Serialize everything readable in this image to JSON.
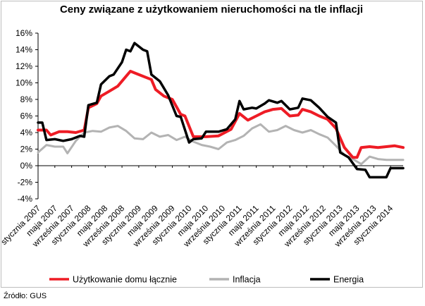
{
  "source": "Źródło: GUS",
  "chart_data": {
    "type": "line",
    "title": "Ceny związane z użytkowaniem nieruchomości na tle inflacji",
    "xlabel": "",
    "ylabel": "",
    "ylim": [
      -4,
      16
    ],
    "y_ticks": [
      -4,
      -2,
      0,
      2,
      4,
      6,
      8,
      10,
      12,
      14,
      16
    ],
    "y_tick_labels": [
      "-4%",
      "-2%",
      "0%",
      "2%",
      "4%",
      "6%",
      "8%",
      "10%",
      "12%",
      "14%",
      "16%"
    ],
    "grid": false,
    "legend_position": "bottom",
    "x_start": "2007-01",
    "x_end": "2014-04",
    "x_tick_labels": [
      {
        "date": "2007-01",
        "label": "stycznia 2007"
      },
      {
        "date": "2007-05",
        "label": "maja 2007"
      },
      {
        "date": "2007-09",
        "label": "września 2007"
      },
      {
        "date": "2008-01",
        "label": "stycznia 2008"
      },
      {
        "date": "2008-05",
        "label": "maja 2008"
      },
      {
        "date": "2008-09",
        "label": "września 2008"
      },
      {
        "date": "2009-01",
        "label": "stycznia 2009"
      },
      {
        "date": "2009-05",
        "label": "maja 2009"
      },
      {
        "date": "2009-09",
        "label": "września 2009"
      },
      {
        "date": "2010-01",
        "label": "stycznia 2010"
      },
      {
        "date": "2010-05",
        "label": "maja 2010"
      },
      {
        "date": "2010-09",
        "label": "września 2010"
      },
      {
        "date": "2011-01",
        "label": "stycznia 2011"
      },
      {
        "date": "2011-05",
        "label": "maja 2011"
      },
      {
        "date": "2011-09",
        "label": "września 2011"
      },
      {
        "date": "2012-01",
        "label": "stycznia 2012"
      },
      {
        "date": "2012-05",
        "label": "maja 2012"
      },
      {
        "date": "2012-09",
        "label": "września 2012"
      },
      {
        "date": "2013-01",
        "label": "stycznia 2013"
      },
      {
        "date": "2013-05",
        "label": "maja 2013"
      },
      {
        "date": "2013-09",
        "label": "września 2013"
      },
      {
        "date": "2014-01",
        "label": "stycznia 2014"
      }
    ],
    "series": [
      {
        "name": "Użytkowanie domu łącznie",
        "color": "#ee1c25",
        "points": [
          [
            "2007-01",
            4.3
          ],
          [
            "2007-03",
            4.3
          ],
          [
            "2007-04",
            3.7
          ],
          [
            "2007-06",
            4.1
          ],
          [
            "2007-08",
            4.1
          ],
          [
            "2007-10",
            4.0
          ],
          [
            "2007-12",
            4.3
          ],
          [
            "2008-01",
            7.0
          ],
          [
            "2008-03",
            7.5
          ],
          [
            "2008-04",
            8.4
          ],
          [
            "2008-06",
            9.0
          ],
          [
            "2008-08",
            9.6
          ],
          [
            "2008-10",
            10.8
          ],
          [
            "2008-11",
            11.4
          ],
          [
            "2008-12",
            11.2
          ],
          [
            "2009-02",
            10.8
          ],
          [
            "2009-04",
            10.4
          ],
          [
            "2009-05",
            9.2
          ],
          [
            "2009-07",
            8.4
          ],
          [
            "2009-09",
            8.0
          ],
          [
            "2009-11",
            6.2
          ],
          [
            "2009-12",
            6.0
          ],
          [
            "2010-02",
            3.5
          ],
          [
            "2010-05",
            3.5
          ],
          [
            "2010-08",
            3.6
          ],
          [
            "2010-11",
            4.4
          ],
          [
            "2011-01",
            6.3
          ],
          [
            "2011-03",
            5.5
          ],
          [
            "2011-05",
            6.0
          ],
          [
            "2011-07",
            6.5
          ],
          [
            "2011-09",
            6.8
          ],
          [
            "2011-11",
            6.9
          ],
          [
            "2012-01",
            6.0
          ],
          [
            "2012-03",
            6.1
          ],
          [
            "2012-04",
            6.8
          ],
          [
            "2012-06",
            6.5
          ],
          [
            "2012-08",
            6.0
          ],
          [
            "2012-10",
            5.6
          ],
          [
            "2012-12",
            4.5
          ],
          [
            "2013-02",
            2.2
          ],
          [
            "2013-04",
            1.0
          ],
          [
            "2013-05",
            1.0
          ],
          [
            "2013-06",
            2.2
          ],
          [
            "2013-08",
            2.3
          ],
          [
            "2013-10",
            2.2
          ],
          [
            "2013-12",
            2.3
          ],
          [
            "2014-02",
            2.4
          ],
          [
            "2014-04",
            2.2
          ]
        ]
      },
      {
        "name": "Inflacja",
        "color": "#b3b3b3",
        "points": [
          [
            "2007-01",
            1.6
          ],
          [
            "2007-03",
            2.5
          ],
          [
            "2007-05",
            2.3
          ],
          [
            "2007-07",
            2.3
          ],
          [
            "2007-08",
            1.5
          ],
          [
            "2007-10",
            3.0
          ],
          [
            "2007-12",
            4.0
          ],
          [
            "2008-02",
            4.2
          ],
          [
            "2008-04",
            4.1
          ],
          [
            "2008-06",
            4.6
          ],
          [
            "2008-08",
            4.8
          ],
          [
            "2008-10",
            4.2
          ],
          [
            "2008-12",
            3.3
          ],
          [
            "2009-02",
            3.2
          ],
          [
            "2009-04",
            4.0
          ],
          [
            "2009-06",
            3.5
          ],
          [
            "2009-08",
            3.7
          ],
          [
            "2009-10",
            3.1
          ],
          [
            "2009-12",
            3.5
          ],
          [
            "2010-02",
            2.9
          ],
          [
            "2010-04",
            2.5
          ],
          [
            "2010-06",
            2.3
          ],
          [
            "2010-08",
            2.0
          ],
          [
            "2010-10",
            2.8
          ],
          [
            "2010-12",
            3.1
          ],
          [
            "2011-02",
            3.6
          ],
          [
            "2011-04",
            4.5
          ],
          [
            "2011-06",
            5.0
          ],
          [
            "2011-08",
            4.1
          ],
          [
            "2011-10",
            4.3
          ],
          [
            "2011-12",
            4.8
          ],
          [
            "2012-02",
            4.3
          ],
          [
            "2012-04",
            4.0
          ],
          [
            "2012-06",
            4.3
          ],
          [
            "2012-08",
            3.8
          ],
          [
            "2012-10",
            3.4
          ],
          [
            "2012-12",
            2.4
          ],
          [
            "2013-02",
            1.3
          ],
          [
            "2013-04",
            0.8
          ],
          [
            "2013-06",
            0.2
          ],
          [
            "2013-08",
            1.1
          ],
          [
            "2013-10",
            0.8
          ],
          [
            "2013-12",
            0.7
          ],
          [
            "2014-02",
            0.7
          ],
          [
            "2014-04",
            0.7
          ]
        ]
      },
      {
        "name": "Energia",
        "color": "#000000",
        "points": [
          [
            "2007-01",
            5.2
          ],
          [
            "2007-02",
            5.2
          ],
          [
            "2007-03",
            3.1
          ],
          [
            "2007-05",
            3.2
          ],
          [
            "2007-07",
            3.0
          ],
          [
            "2007-09",
            3.2
          ],
          [
            "2007-11",
            3.6
          ],
          [
            "2007-12",
            3.5
          ],
          [
            "2008-01",
            7.3
          ],
          [
            "2008-03",
            7.6
          ],
          [
            "2008-04",
            9.8
          ],
          [
            "2008-06",
            10.8
          ],
          [
            "2008-07",
            11.0
          ],
          [
            "2008-09",
            12.5
          ],
          [
            "2008-10",
            14.0
          ],
          [
            "2008-11",
            13.8
          ],
          [
            "2008-12",
            14.8
          ],
          [
            "2009-02",
            14.0
          ],
          [
            "2009-03",
            13.8
          ],
          [
            "2009-04",
            11.0
          ],
          [
            "2009-06",
            10.2
          ],
          [
            "2009-08",
            8.5
          ],
          [
            "2009-10",
            6.0
          ],
          [
            "2009-11",
            5.9
          ],
          [
            "2010-01",
            2.8
          ],
          [
            "2010-02",
            3.2
          ],
          [
            "2010-04",
            3.3
          ],
          [
            "2010-05",
            4.1
          ],
          [
            "2010-08",
            4.1
          ],
          [
            "2010-10",
            4.4
          ],
          [
            "2010-12",
            5.6
          ],
          [
            "2011-01",
            7.8
          ],
          [
            "2011-02",
            6.8
          ],
          [
            "2011-04",
            7.0
          ],
          [
            "2011-05",
            6.9
          ],
          [
            "2011-07",
            7.5
          ],
          [
            "2011-08",
            7.9
          ],
          [
            "2011-10",
            7.6
          ],
          [
            "2011-11",
            7.8
          ],
          [
            "2012-01",
            6.8
          ],
          [
            "2012-03",
            7.0
          ],
          [
            "2012-04",
            8.1
          ],
          [
            "2012-06",
            7.9
          ],
          [
            "2012-08",
            7.0
          ],
          [
            "2012-10",
            5.9
          ],
          [
            "2012-12",
            5.2
          ],
          [
            "2013-01",
            1.6
          ],
          [
            "2013-03",
            1.0
          ],
          [
            "2013-05",
            -0.4
          ],
          [
            "2013-07",
            -0.5
          ],
          [
            "2013-08",
            -1.4
          ],
          [
            "2013-10",
            -1.4
          ],
          [
            "2013-12",
            -1.4
          ],
          [
            "2014-01",
            -0.3
          ],
          [
            "2014-04",
            -0.3
          ]
        ]
      }
    ]
  }
}
